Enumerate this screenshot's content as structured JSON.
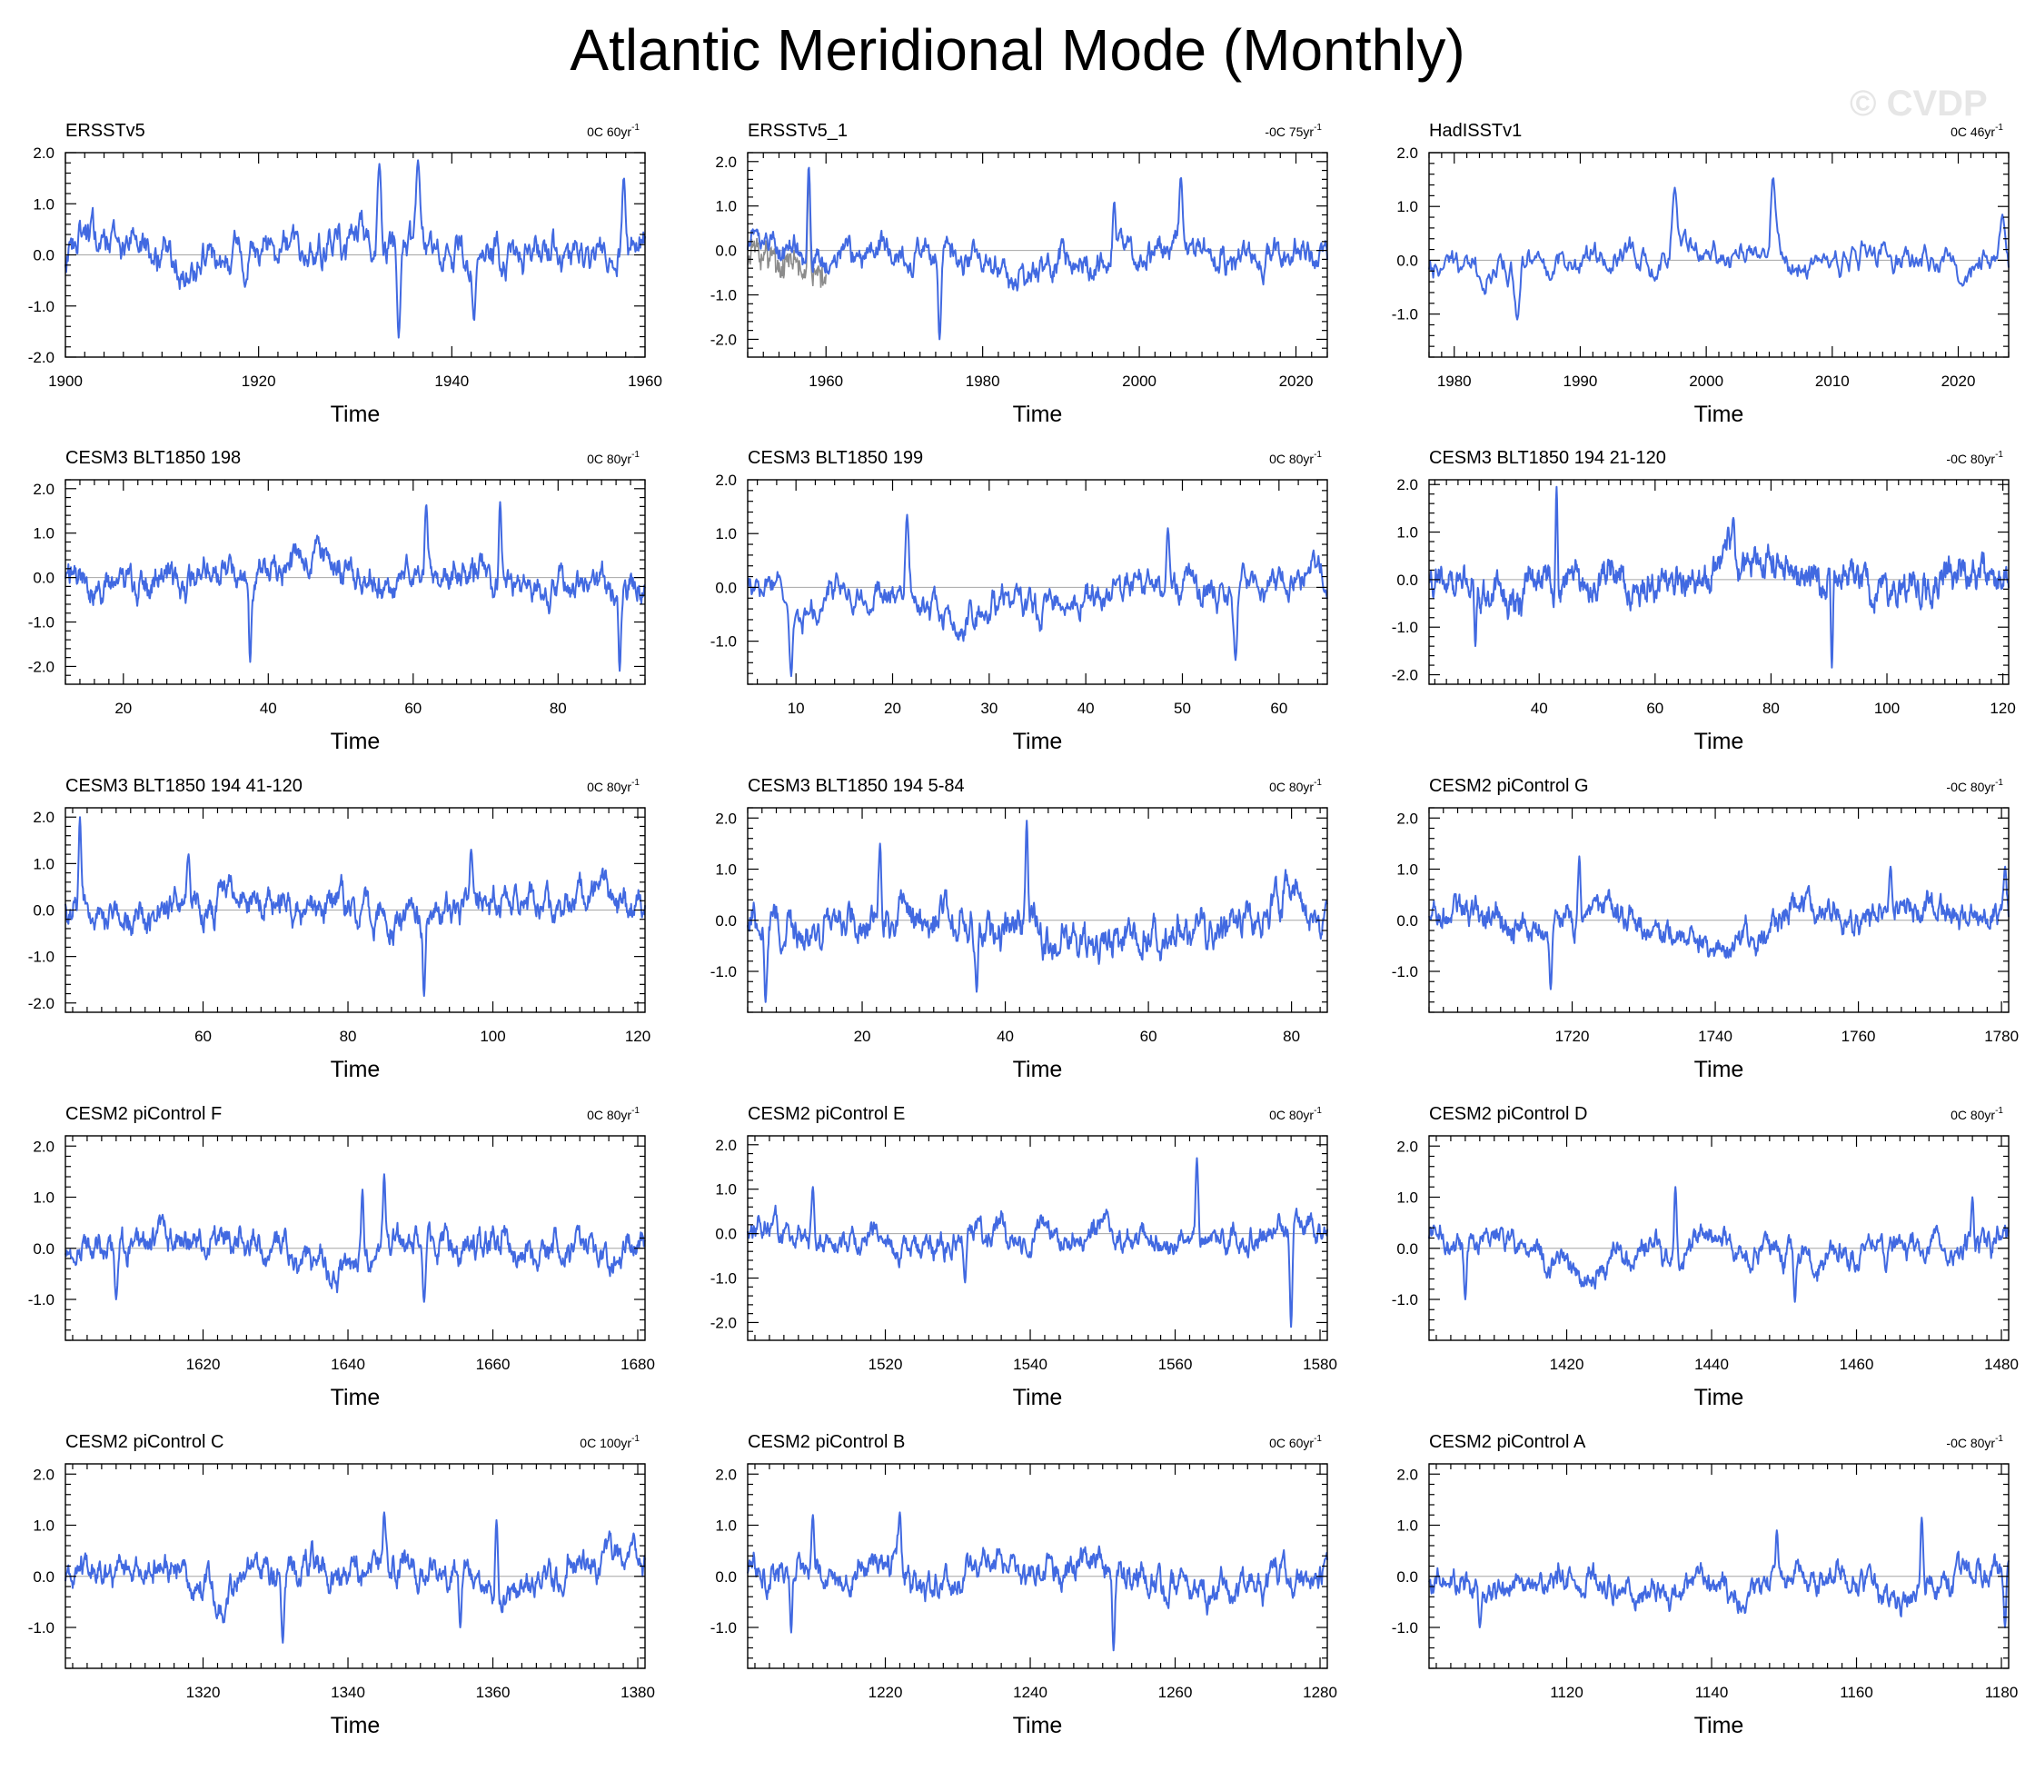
{
  "title": "Atlantic Meridional Mode (Monthly)",
  "watermark": "© CVDP",
  "colors": {
    "series": "#4169e1",
    "obs_spread": "#8c8c8c",
    "zero_line": "#a6a6a6",
    "axis": "#000000",
    "watermark": "#e6e6e6"
  },
  "chart_data": [
    {
      "type": "line",
      "title": "ERSSTv5",
      "trend": "0C 60yr",
      "trend_sup": "-1",
      "xlabel": "Time",
      "xlim": [
        1900,
        1960
      ],
      "xticks": [
        1900,
        1920,
        1940,
        1960
      ],
      "ylim": [
        -2,
        2
      ],
      "yticks": [
        -2,
        -1,
        0,
        1,
        2
      ],
      "amp": 0.55,
      "spikes": [
        [
          1932.5,
          1.78
        ],
        [
          1936.5,
          1.85
        ],
        [
          1957.8,
          1.52
        ],
        [
          1934.5,
          -1.62
        ],
        [
          1942.3,
          -1.3
        ]
      ],
      "seed": 11
    },
    {
      "type": "line",
      "title": "ERSSTv5_1",
      "trend": "-0C 75yr",
      "trend_sup": "-1",
      "xlabel": "Time",
      "xlim": [
        1950,
        2024
      ],
      "xticks": [
        1960,
        1980,
        2000,
        2020
      ],
      "ylim": [
        -2.4,
        2.2
      ],
      "yticks": [
        -2,
        -1,
        0,
        1,
        2
      ],
      "amp": 0.45,
      "spikes": [
        [
          1957.8,
          1.9
        ],
        [
          1974.5,
          -2.0
        ],
        [
          2005.3,
          1.65
        ],
        [
          1996.8,
          1.1
        ]
      ],
      "seed": 12,
      "spread": [
        1950,
        1960
      ]
    },
    {
      "type": "line",
      "title": "HadISSTv1",
      "trend": "0C 46yr",
      "trend_sup": "-1",
      "xlabel": "Time",
      "xlim": [
        1978,
        2024
      ],
      "xticks": [
        1980,
        1990,
        2000,
        2010,
        2020
      ],
      "ylim": [
        -1.8,
        2.0
      ],
      "yticks": [
        -1,
        0,
        1,
        2
      ],
      "amp": 0.4,
      "spikes": [
        [
          2005.3,
          1.55
        ],
        [
          1997.5,
          1.35
        ],
        [
          1985,
          -1.1
        ],
        [
          2023.5,
          0.85
        ]
      ],
      "seed": 13
    },
    {
      "type": "line",
      "title": "CESM3 BLT1850 198",
      "trend": "0C 80yr",
      "trend_sup": "-1",
      "xlabel": "Time",
      "xlim": [
        12,
        92
      ],
      "xticks": [
        20,
        40,
        60,
        80
      ],
      "ylim": [
        -2.4,
        2.2
      ],
      "yticks": [
        -2,
        -1,
        0,
        1,
        2
      ],
      "amp": 0.5,
      "spikes": [
        [
          61.8,
          1.65
        ],
        [
          37.5,
          -1.9
        ],
        [
          88.5,
          -2.1
        ],
        [
          72,
          1.7
        ]
      ],
      "seed": 14
    },
    {
      "type": "line",
      "title": "CESM3 BLT1850 199",
      "trend": "0C 80yr",
      "trend_sup": "-1",
      "xlabel": "Time",
      "xlim": [
        5,
        65
      ],
      "xticks": [
        10,
        20,
        30,
        40,
        50,
        60
      ],
      "ylim": [
        -1.8,
        2.0
      ],
      "yticks": [
        -1,
        0,
        1,
        2
      ],
      "amp": 0.45,
      "spikes": [
        [
          9.5,
          -1.65
        ],
        [
          21.5,
          1.35
        ],
        [
          55.5,
          -1.35
        ],
        [
          48.5,
          1.1
        ]
      ],
      "seed": 15
    },
    {
      "type": "line",
      "title": "CESM3 BLT1850 194 21-120",
      "trend": "-0C 80yr",
      "trend_sup": "-1",
      "xlabel": "Time",
      "xlim": [
        21,
        121
      ],
      "xticks": [
        40,
        60,
        80,
        100,
        120
      ],
      "ylim": [
        -2.2,
        2.1
      ],
      "yticks": [
        -2,
        -1,
        0,
        1,
        2
      ],
      "amp": 0.5,
      "spikes": [
        [
          43,
          1.95
        ],
        [
          90.5,
          -1.85
        ],
        [
          29,
          -1.4
        ],
        [
          73.5,
          1.3
        ]
      ],
      "seed": 16
    },
    {
      "type": "line",
      "title": "CESM3 BLT1850 194 41-120",
      "trend": "0C 80yr",
      "trend_sup": "-1",
      "xlabel": "Time",
      "xlim": [
        41,
        121
      ],
      "xticks": [
        60,
        80,
        100,
        120
      ],
      "ylim": [
        -2.2,
        2.2
      ],
      "yticks": [
        -2,
        -1,
        0,
        1,
        2
      ],
      "amp": 0.5,
      "spikes": [
        [
          43,
          2.0
        ],
        [
          90.5,
          -1.85
        ],
        [
          97,
          1.3
        ],
        [
          58,
          1.2
        ]
      ],
      "seed": 17
    },
    {
      "type": "line",
      "title": "CESM3 BLT1850 194 5-84",
      "trend": "0C 80yr",
      "trend_sup": "-1",
      "xlabel": "Time",
      "xlim": [
        4,
        85
      ],
      "xticks": [
        20,
        40,
        60,
        80
      ],
      "ylim": [
        -1.8,
        2.2
      ],
      "yticks": [
        -1,
        0,
        1,
        2
      ],
      "amp": 0.5,
      "spikes": [
        [
          43,
          1.95
        ],
        [
          6.5,
          -1.6
        ],
        [
          22.5,
          1.5
        ],
        [
          36,
          -1.4
        ]
      ],
      "seed": 18
    },
    {
      "type": "line",
      "title": "CESM2 piControl G",
      "trend": "-0C 80yr",
      "trend_sup": "-1",
      "xlabel": "Time",
      "xlim": [
        1700,
        1781
      ],
      "xticks": [
        1720,
        1740,
        1760,
        1780
      ],
      "ylim": [
        -1.8,
        2.2
      ],
      "yticks": [
        -1,
        0,
        1,
        2
      ],
      "amp": 0.4,
      "spikes": [
        [
          1721,
          1.25
        ],
        [
          1717,
          -1.35
        ],
        [
          1764.5,
          1.05
        ],
        [
          1780.5,
          1.05
        ]
      ],
      "seed": 19
    },
    {
      "type": "line",
      "title": "CESM2 piControl F",
      "trend": "0C 80yr",
      "trend_sup": "-1",
      "xlabel": "Time",
      "xlim": [
        1601,
        1681
      ],
      "xticks": [
        1620,
        1640,
        1660,
        1680
      ],
      "ylim": [
        -1.8,
        2.2
      ],
      "yticks": [
        -1,
        0,
        1,
        2
      ],
      "amp": 0.4,
      "spikes": [
        [
          1645,
          1.45
        ],
        [
          1642,
          1.15
        ],
        [
          1650.5,
          -1.05
        ],
        [
          1608,
          -1.0
        ]
      ],
      "seed": 20
    },
    {
      "type": "line",
      "title": "CESM2 piControl E",
      "trend": "0C 80yr",
      "trend_sup": "-1",
      "xlabel": "Time",
      "xlim": [
        1501,
        1581
      ],
      "xticks": [
        1520,
        1540,
        1560,
        1580
      ],
      "ylim": [
        -2.4,
        2.2
      ],
      "yticks": [
        -2,
        -1,
        0,
        1,
        2
      ],
      "amp": 0.4,
      "spikes": [
        [
          1563,
          1.7
        ],
        [
          1576,
          -2.1
        ],
        [
          1531,
          -1.1
        ],
        [
          1510,
          1.05
        ]
      ],
      "seed": 21
    },
    {
      "type": "line",
      "title": "CESM2 piControl D",
      "trend": "0C 80yr",
      "trend_sup": "-1",
      "xlabel": "Time",
      "xlim": [
        1401,
        1481
      ],
      "xticks": [
        1420,
        1440,
        1460,
        1480
      ],
      "ylim": [
        -1.8,
        2.2
      ],
      "yticks": [
        -1,
        0,
        1,
        2
      ],
      "amp": 0.35,
      "spikes": [
        [
          1435,
          1.2
        ],
        [
          1451.5,
          -1.05
        ],
        [
          1476,
          1.0
        ],
        [
          1406,
          -1.0
        ]
      ],
      "seed": 22
    },
    {
      "type": "line",
      "title": "CESM2 piControl C",
      "trend": "0C 100yr",
      "trend_sup": "-1",
      "xlabel": "Time",
      "xlim": [
        1301,
        1381
      ],
      "xticks": [
        1320,
        1340,
        1360,
        1380
      ],
      "ylim": [
        -1.8,
        2.2
      ],
      "yticks": [
        -1,
        0,
        1,
        2
      ],
      "amp": 0.4,
      "spikes": [
        [
          1345,
          1.25
        ],
        [
          1331,
          -1.3
        ],
        [
          1360.5,
          1.1
        ],
        [
          1355.5,
          -1.0
        ]
      ],
      "seed": 23
    },
    {
      "type": "line",
      "title": "CESM2 piControl B",
      "trend": "0C 60yr",
      "trend_sup": "-1",
      "xlabel": "Time",
      "xlim": [
        1201,
        1281
      ],
      "xticks": [
        1220,
        1240,
        1260,
        1280
      ],
      "ylim": [
        -1.8,
        2.2
      ],
      "yticks": [
        -1,
        0,
        1,
        2
      ],
      "amp": 0.4,
      "spikes": [
        [
          1222,
          1.25
        ],
        [
          1251.5,
          -1.45
        ],
        [
          1210,
          1.2
        ],
        [
          1207,
          -1.1
        ]
      ],
      "seed": 24
    },
    {
      "type": "line",
      "title": "CESM2 piControl A",
      "trend": "-0C 80yr",
      "trend_sup": "-1",
      "xlabel": "Time",
      "xlim": [
        1101,
        1181
      ],
      "xticks": [
        1120,
        1140,
        1160,
        1180
      ],
      "ylim": [
        -1.8,
        2.2
      ],
      "yticks": [
        -1,
        0,
        1,
        2
      ],
      "amp": 0.35,
      "spikes": [
        [
          1169,
          1.15
        ],
        [
          1149,
          0.9
        ],
        [
          1108,
          -1.0
        ],
        [
          1180.5,
          -1.0
        ]
      ],
      "seed": 25
    }
  ]
}
